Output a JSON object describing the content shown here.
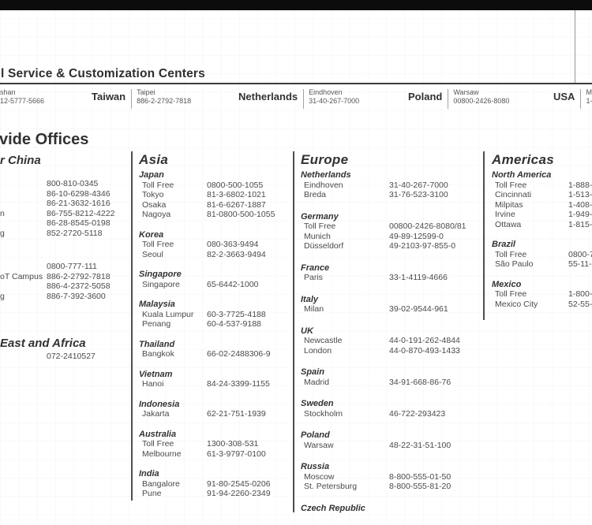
{
  "service_centers": {
    "title": "l Service & Customization Centers",
    "entries": [
      {
        "country": "",
        "city": "shan",
        "phone": "12-5777-5666"
      },
      {
        "country": "Taiwan",
        "city": "Taipei",
        "phone": "886-2-2792-7818"
      },
      {
        "country": "Netherlands",
        "city": "Eindhoven",
        "phone": "31-40-267-7000"
      },
      {
        "country": "Poland",
        "city": "Warsaw",
        "phone": "00800-2426-8080"
      },
      {
        "country": "USA",
        "city": "M",
        "phone": "1-"
      }
    ]
  },
  "worldwide_offices": {
    "title": "vide Offices",
    "china_column": {
      "title": "r China",
      "block1": [
        {
          "label": "",
          "value": "800-810-0345"
        },
        {
          "label": "",
          "value": "86-10-6298-4346"
        },
        {
          "label": "",
          "value": "86-21-3632-1616"
        },
        {
          "label": "n",
          "value": "86-755-8212-4222"
        },
        {
          "label": "",
          "value": "86-28-8545-0198"
        },
        {
          "label": "g",
          "value": "852-2720-5118"
        }
      ],
      "block2": [
        {
          "label": "",
          "value": "0800-777-111"
        },
        {
          "label": "oT Campus",
          "value": "886-2-2792-7818"
        },
        {
          "label": "",
          "value": "886-4-2372-5058"
        },
        {
          "label": "g",
          "value": "886-7-392-3600"
        }
      ],
      "mea_title": "East and Africa",
      "mea_phone": "072-2410527"
    },
    "columns": [
      {
        "title": "Asia",
        "sections": [
          {
            "country": "Japan",
            "rows": [
              {
                "label": "Toll Free",
                "value": "0800-500-1055"
              },
              {
                "label": "Tokyo",
                "value": "81-3-6802-1021"
              },
              {
                "label": "Osaka",
                "value": "81-6-6267-1887"
              },
              {
                "label": "Nagoya",
                "value": "81-0800-500-1055"
              }
            ]
          },
          {
            "country": "Korea",
            "rows": [
              {
                "label": "Toll Free",
                "value": "080-363-9494"
              },
              {
                "label": "Seoul",
                "value": "82-2-3663-9494"
              }
            ]
          },
          {
            "country": "Singapore",
            "rows": [
              {
                "label": "Singapore",
                "value": "65-6442-1000"
              }
            ]
          },
          {
            "country": "Malaysia",
            "rows": [
              {
                "label": "Kuala Lumpur",
                "value": "60-3-7725-4188"
              },
              {
                "label": "Penang",
                "value": "60-4-537-9188"
              }
            ]
          },
          {
            "country": "Thailand",
            "rows": [
              {
                "label": "Bangkok",
                "value": "66-02-2488306-9"
              }
            ]
          },
          {
            "country": "Vietnam",
            "rows": [
              {
                "label": "Hanoi",
                "value": "84-24-3399-1155"
              }
            ]
          },
          {
            "country": "Indonesia",
            "rows": [
              {
                "label": "Jakarta",
                "value": "62-21-751-1939"
              }
            ]
          },
          {
            "country": "Australia",
            "rows": [
              {
                "label": "Toll Free",
                "value": "1300-308-531"
              },
              {
                "label": "Melbourne",
                "value": "61-3-9797-0100"
              }
            ]
          },
          {
            "country": "India",
            "rows": [
              {
                "label": "Bangalore",
                "value": "91-80-2545-0206"
              },
              {
                "label": "Pune",
                "value": "91-94-2260-2349"
              }
            ]
          }
        ]
      },
      {
        "title": "Europe",
        "sections": [
          {
            "country": "Netherlands",
            "rows": [
              {
                "label": "Eindhoven",
                "value": "31-40-267-7000"
              },
              {
                "label": "Breda",
                "value": "31-76-523-3100"
              }
            ]
          },
          {
            "country": "Germany",
            "rows": [
              {
                "label": "Toll Free",
                "value": "00800-2426-8080/81"
              },
              {
                "label": "Munich",
                "value": "49-89-12599-0"
              },
              {
                "label": "Düsseldorf",
                "value": "49-2103-97-855-0"
              }
            ]
          },
          {
            "country": "France",
            "rows": [
              {
                "label": "Paris",
                "value": "33-1-4119-4666"
              }
            ]
          },
          {
            "country": "Italy",
            "rows": [
              {
                "label": "Milan",
                "value": "39-02-9544-961"
              }
            ]
          },
          {
            "country": "UK",
            "rows": [
              {
                "label": "Newcastle",
                "value": "44-0-191-262-4844"
              },
              {
                "label": "London",
                "value": "44-0-870-493-1433"
              }
            ]
          },
          {
            "country": "Spain",
            "rows": [
              {
                "label": "Madrid",
                "value": "34-91-668-86-76"
              }
            ]
          },
          {
            "country": "Sweden",
            "rows": [
              {
                "label": "Stockholm",
                "value": "46-722-293423"
              }
            ]
          },
          {
            "country": "Poland",
            "rows": [
              {
                "label": "Warsaw",
                "value": "48-22-31-51-100"
              }
            ]
          },
          {
            "country": "Russia",
            "rows": [
              {
                "label": "Moscow",
                "value": "8-800-555-01-50"
              },
              {
                "label": "St. Petersburg",
                "value": "8-800-555-81-20"
              }
            ]
          },
          {
            "country": "Czech Republic",
            "rows": []
          }
        ]
      },
      {
        "title": "Americas",
        "sections": [
          {
            "country": "North America",
            "rows": [
              {
                "label": "Toll Free",
                "value": "1-888-"
              },
              {
                "label": "Cincinnati",
                "value": "1-513-"
              },
              {
                "label": "Milpitas",
                "value": "1-408-"
              },
              {
                "label": "Irvine",
                "value": "1-949-"
              },
              {
                "label": "Ottawa",
                "value": "1-815-"
              }
            ]
          },
          {
            "country": "Brazil",
            "rows": [
              {
                "label": "Toll Free",
                "value": "0800-7"
              },
              {
                "label": "São Paulo",
                "value": "55-11-"
              }
            ]
          },
          {
            "country": "Mexico",
            "rows": [
              {
                "label": "Toll Free",
                "value": "1-800-"
              },
              {
                "label": "Mexico City",
                "value": "52-55-"
              }
            ]
          }
        ]
      }
    ]
  }
}
